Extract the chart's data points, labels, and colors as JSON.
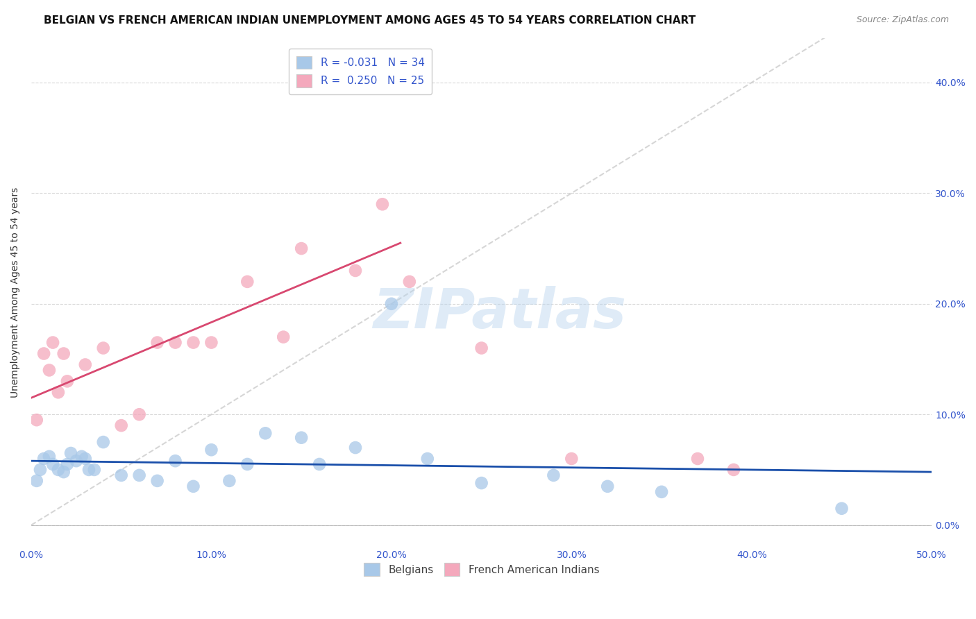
{
  "title": "BELGIAN VS FRENCH AMERICAN INDIAN UNEMPLOYMENT AMONG AGES 45 TO 54 YEARS CORRELATION CHART",
  "source": "Source: ZipAtlas.com",
  "ylabel": "Unemployment Among Ages 45 to 54 years",
  "xlim": [
    0.0,
    0.5
  ],
  "ylim": [
    -0.02,
    0.44
  ],
  "xtick_vals": [
    0.0,
    0.1,
    0.2,
    0.3,
    0.4,
    0.5
  ],
  "xtick_labels": [
    "0.0%",
    "10.0%",
    "20.0%",
    "30.0%",
    "40.0%",
    "50.0%"
  ],
  "ytick_vals": [
    0.0,
    0.1,
    0.2,
    0.3,
    0.4
  ],
  "ytick_labels_right": [
    "0.0%",
    "10.0%",
    "20.0%",
    "30.0%",
    "40.0%"
  ],
  "legend_r_belgian": "-0.031",
  "legend_n_belgian": "34",
  "legend_r_french": "0.250",
  "legend_n_french": "25",
  "belgian_color": "#a8c8e8",
  "french_color": "#f4a8bc",
  "belgian_line_color": "#1a4faa",
  "french_line_color": "#d84870",
  "diagonal_color": "#cccccc",
  "watermark": "ZIPatlas",
  "background_color": "#ffffff",
  "belgian_scatter_x": [
    0.003,
    0.005,
    0.007,
    0.01,
    0.012,
    0.015,
    0.018,
    0.02,
    0.022,
    0.025,
    0.028,
    0.03,
    0.032,
    0.035,
    0.04,
    0.05,
    0.06,
    0.07,
    0.08,
    0.09,
    0.1,
    0.11,
    0.12,
    0.13,
    0.15,
    0.16,
    0.18,
    0.2,
    0.22,
    0.25,
    0.29,
    0.32,
    0.35,
    0.45
  ],
  "belgian_scatter_y": [
    0.04,
    0.05,
    0.06,
    0.062,
    0.055,
    0.05,
    0.048,
    0.055,
    0.065,
    0.058,
    0.062,
    0.06,
    0.05,
    0.05,
    0.075,
    0.045,
    0.045,
    0.04,
    0.058,
    0.035,
    0.068,
    0.04,
    0.055,
    0.083,
    0.079,
    0.055,
    0.07,
    0.2,
    0.06,
    0.038,
    0.045,
    0.035,
    0.03,
    0.015
  ],
  "french_scatter_x": [
    0.003,
    0.007,
    0.01,
    0.012,
    0.015,
    0.018,
    0.02,
    0.03,
    0.04,
    0.05,
    0.06,
    0.07,
    0.08,
    0.09,
    0.1,
    0.12,
    0.14,
    0.15,
    0.18,
    0.195,
    0.21,
    0.25,
    0.3,
    0.37,
    0.39
  ],
  "french_scatter_y": [
    0.095,
    0.155,
    0.14,
    0.165,
    0.12,
    0.155,
    0.13,
    0.145,
    0.16,
    0.09,
    0.1,
    0.165,
    0.165,
    0.165,
    0.165,
    0.22,
    0.17,
    0.25,
    0.23,
    0.29,
    0.22,
    0.16,
    0.06,
    0.06,
    0.05
  ],
  "french_line_x0": 0.0,
  "french_line_y0": 0.115,
  "french_line_x1": 0.205,
  "french_line_y1": 0.255,
  "belgian_line_x0": 0.0,
  "belgian_line_y0": 0.058,
  "belgian_line_x1": 0.5,
  "belgian_line_y1": 0.048,
  "title_fontsize": 11,
  "axis_label_fontsize": 10,
  "tick_fontsize": 10,
  "legend_fontsize": 11,
  "source_fontsize": 9
}
